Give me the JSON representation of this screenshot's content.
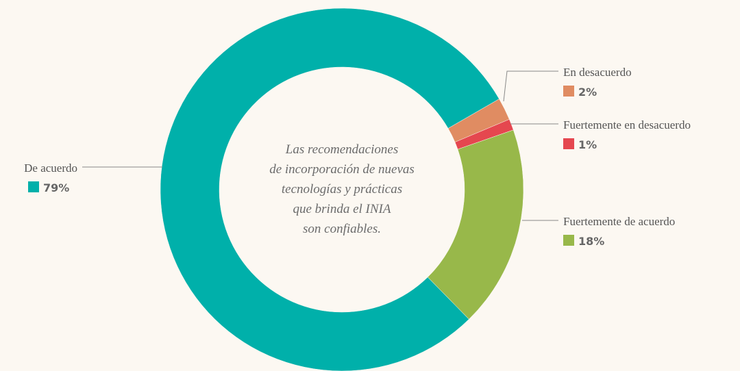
{
  "chart_data": {
    "type": "donut",
    "annotation": [
      "Las recomendaciones",
      "de incorporación de nuevas",
      "tecnologías y prácticas",
      "que brinda el INIA",
      "son confiables."
    ],
    "categories": [
      "En desacuerdo",
      "Fuertemente en desacuerdo",
      "Fuertemente de acuerdo",
      "De acuerdo"
    ],
    "values": [
      2,
      1,
      18,
      79
    ],
    "value_labels": [
      "2%",
      "1%",
      "18%",
      "79%"
    ],
    "colors": [
      "#e08c62",
      "#e5474f",
      "#98b84a",
      "#00b0aa"
    ]
  }
}
